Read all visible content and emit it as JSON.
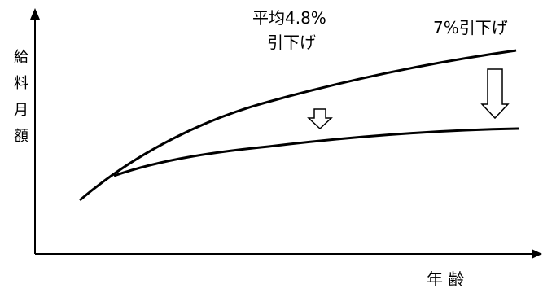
{
  "axes": {
    "y_label_chars": [
      "給",
      "料",
      "月",
      "額"
    ],
    "x_label": "年 齢"
  },
  "annotations": {
    "left_line1": "平均4.8%",
    "left_line2": "引下げ",
    "right": "7%引下げ"
  },
  "curves": [
    {
      "role": "before"
    },
    {
      "role": "after"
    }
  ],
  "arrows": [
    {
      "role": "small-down"
    },
    {
      "role": "large-down"
    }
  ],
  "colors": {
    "line": "#000000",
    "background": "#ffffff"
  }
}
